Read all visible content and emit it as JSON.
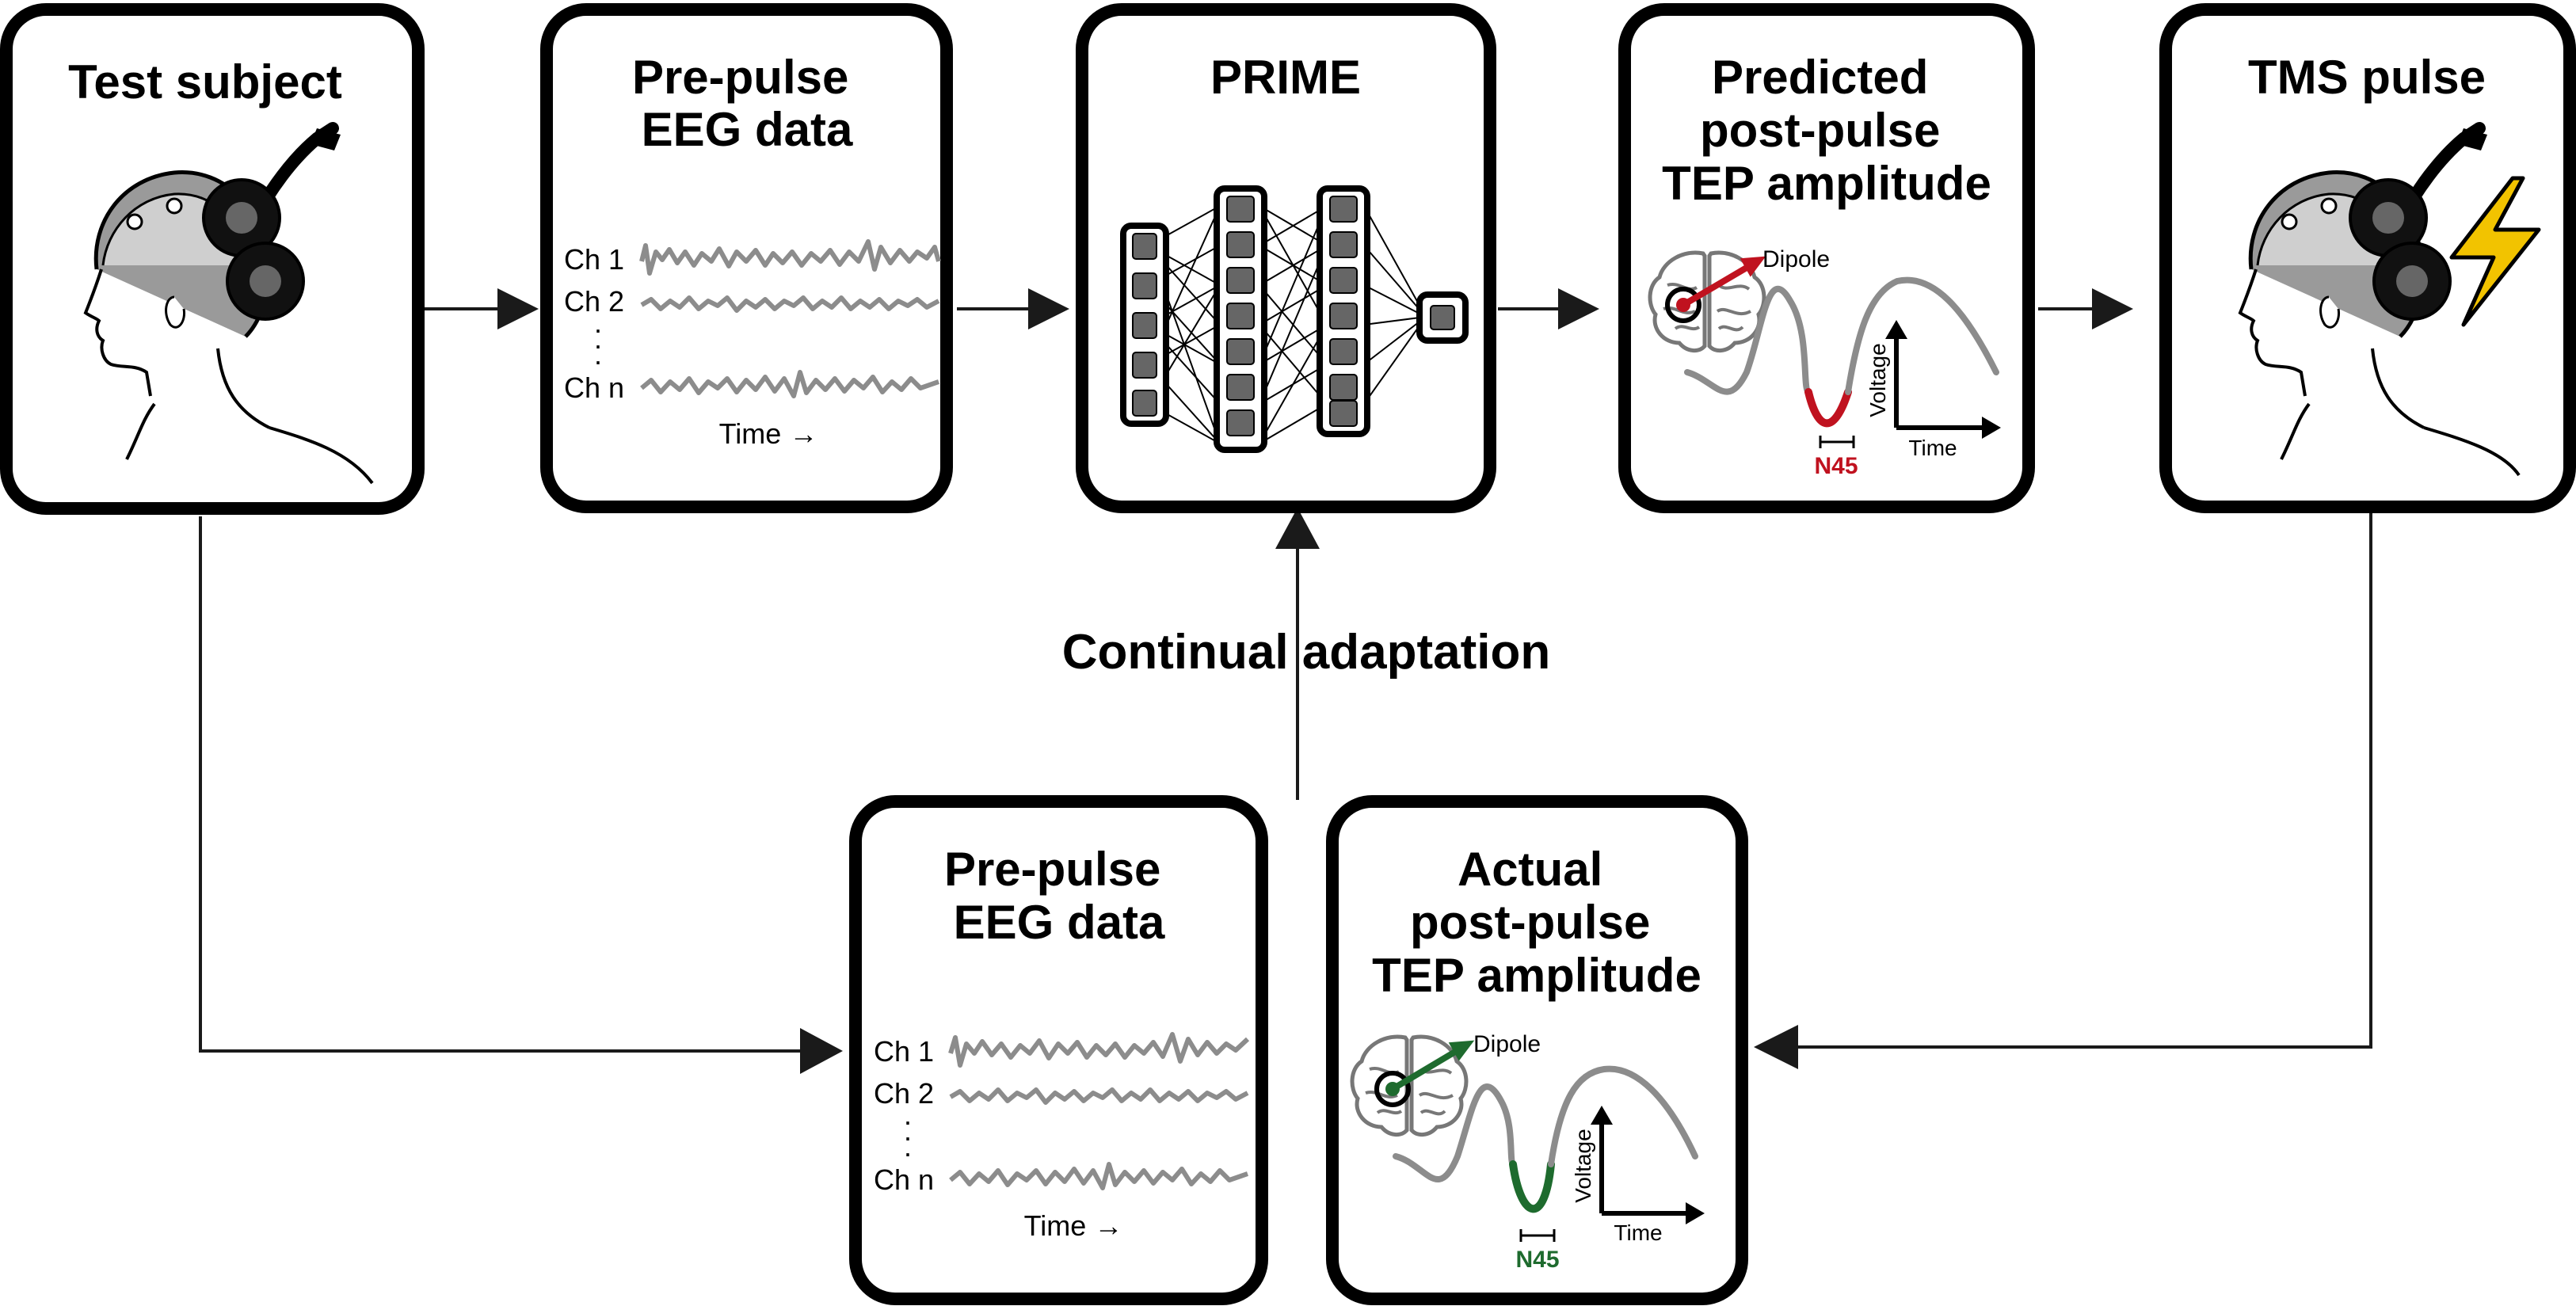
{
  "diagram": {
    "boxes": {
      "test_subject": {
        "title": [
          "Test subject"
        ]
      },
      "eeg_top": {
        "title": [
          "Pre-pulse",
          "EEG data"
        ],
        "channels": [
          "Ch 1",
          "Ch 2",
          "Ch n"
        ],
        "time_label": "Time →"
      },
      "prime": {
        "title": [
          "PRIME"
        ]
      },
      "predicted": {
        "title": [
          "Predicted",
          "post-pulse",
          "TEP amplitude"
        ],
        "dipole_label": "Dipole",
        "voltage_label": "Voltage",
        "time_label": "Time",
        "n45_label": "N45"
      },
      "tms": {
        "title": [
          "TMS pulse"
        ]
      },
      "eeg_bottom": {
        "title": [
          "Pre-pulse",
          "EEG data"
        ],
        "channels": [
          "Ch 1",
          "Ch 2",
          "Ch n"
        ],
        "time_label": "Time →"
      },
      "actual": {
        "title": [
          "Actual",
          "post-pulse",
          "TEP amplitude"
        ],
        "dipole_label": "Dipole",
        "voltage_label": "Voltage",
        "time_label": "Time",
        "n45_label": "N45"
      }
    },
    "center_label": "Continual adaptation",
    "colors": {
      "predicted_accent": "#c0121f",
      "actual_accent": "#1e6b2e",
      "signal_gray": "#8c8c8c",
      "bolt_yellow": "#f2c300",
      "box_stroke": "#000000"
    }
  }
}
